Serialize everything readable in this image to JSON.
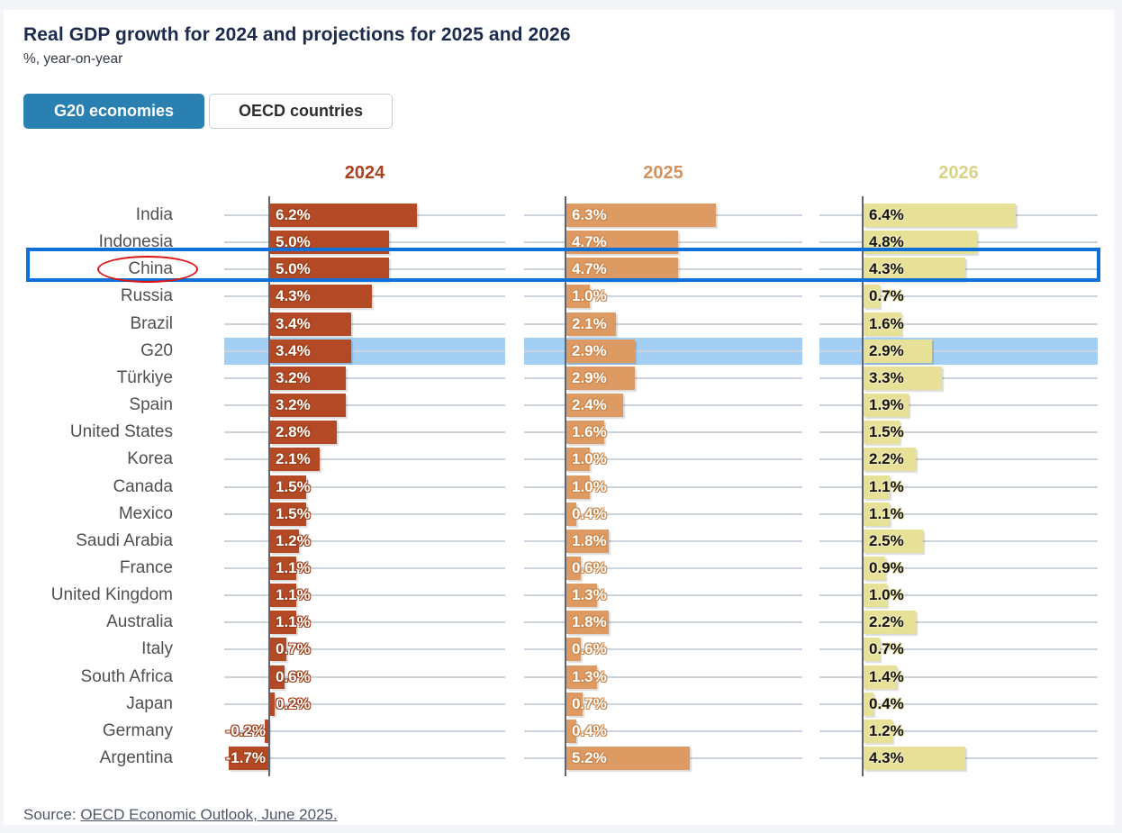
{
  "title": "Real GDP growth for 2024 and projections for 2025 and 2026",
  "subtitle": "%, year-on-year",
  "tabs": [
    {
      "label": "G20 economies",
      "selected": true
    },
    {
      "label": "OECD countries",
      "selected": false
    }
  ],
  "source": {
    "prefix": "Source: ",
    "link_text": "OECD Economic Outlook, June 2025."
  },
  "chart_data": {
    "type": "bar",
    "orientation": "horizontal",
    "value_suffix": "%",
    "categories": [
      "India",
      "Indonesia",
      "China",
      "Russia",
      "Brazil",
      "G20",
      "Türkiye",
      "Spain",
      "United States",
      "Korea",
      "Canada",
      "Mexico",
      "Saudi Arabia",
      "France",
      "United Kingdom",
      "Australia",
      "Italy",
      "South Africa",
      "Japan",
      "Germany",
      "Argentina"
    ],
    "series": [
      {
        "name": "2024",
        "color": "#b34a25",
        "header_color": "#a8431d",
        "values": [
          6.2,
          5.0,
          5.0,
          4.3,
          3.4,
          3.4,
          3.2,
          3.2,
          2.8,
          2.1,
          1.5,
          1.5,
          1.2,
          1.1,
          1.1,
          1.1,
          0.7,
          0.6,
          0.2,
          -0.2,
          -1.7
        ]
      },
      {
        "name": "2025",
        "color": "#dd9a62",
        "header_color": "#d3925e",
        "values": [
          6.3,
          4.7,
          4.7,
          1.0,
          2.1,
          2.9,
          2.9,
          2.4,
          1.6,
          1.0,
          1.0,
          0.4,
          1.8,
          0.6,
          1.3,
          1.8,
          0.6,
          1.3,
          0.7,
          0.4,
          5.2
        ]
      },
      {
        "name": "2026",
        "color": "#e7e198",
        "header_color": "#d9d184",
        "values": [
          6.4,
          4.8,
          4.3,
          0.7,
          1.6,
          2.9,
          3.3,
          1.9,
          1.5,
          2.2,
          1.1,
          1.1,
          2.5,
          0.9,
          1.0,
          2.2,
          0.7,
          1.4,
          0.4,
          1.2,
          4.3
        ]
      }
    ],
    "highlighted_row": "G20",
    "annotated_row": "China",
    "grid": true,
    "legend_position": "column-headers"
  },
  "annotations": {
    "g20_highlight_color": "#a4cff5",
    "china_box_color": "#0c70d8",
    "china_ellipse_color": "#dd1414"
  }
}
